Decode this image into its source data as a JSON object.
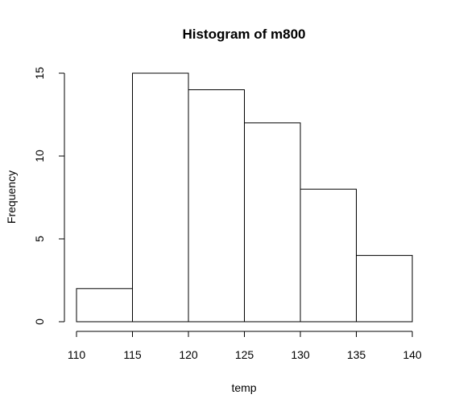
{
  "chart_data": {
    "type": "bar",
    "title": "Histogram of m800",
    "xlabel": "temp",
    "ylabel": "Frequency",
    "bins": [
      {
        "start": 110,
        "end": 115,
        "count": 2
      },
      {
        "start": 115,
        "end": 120,
        "count": 15
      },
      {
        "start": 120,
        "end": 125,
        "count": 14
      },
      {
        "start": 125,
        "end": 130,
        "count": 12
      },
      {
        "start": 130,
        "end": 135,
        "count": 8
      },
      {
        "start": 135,
        "end": 140,
        "count": 4
      }
    ],
    "x_ticks": [
      "110",
      "115",
      "120",
      "125",
      "130",
      "135",
      "140"
    ],
    "y_ticks": [
      "0",
      "5",
      "10",
      "15"
    ],
    "xlim": [
      110,
      140
    ],
    "ylim": [
      0,
      15
    ],
    "grid": false,
    "colors": {
      "bar_fill": "#ffffff",
      "bar_stroke": "#000000"
    }
  }
}
